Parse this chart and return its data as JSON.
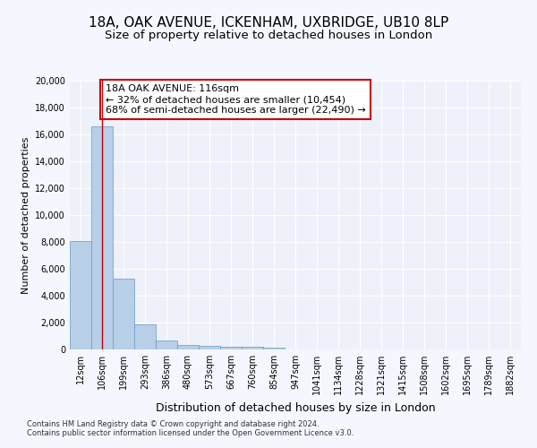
{
  "title1": "18A, OAK AVENUE, ICKENHAM, UXBRIDGE, UB10 8LP",
  "title2": "Size of property relative to detached houses in London",
  "xlabel": "Distribution of detached houses by size in London",
  "ylabel": "Number of detached properties",
  "categories": [
    "12sqm",
    "106sqm",
    "199sqm",
    "293sqm",
    "386sqm",
    "480sqm",
    "573sqm",
    "667sqm",
    "760sqm",
    "854sqm",
    "947sqm",
    "1041sqm",
    "1134sqm",
    "1228sqm",
    "1321sqm",
    "1415sqm",
    "1508sqm",
    "1602sqm",
    "1695sqm",
    "1789sqm",
    "1882sqm"
  ],
  "values": [
    8100,
    16600,
    5300,
    1850,
    680,
    360,
    270,
    200,
    175,
    155,
    0,
    0,
    0,
    0,
    0,
    0,
    0,
    0,
    0,
    0,
    0
  ],
  "bar_color": "#b8cfe8",
  "bar_edge_color": "#6699cc",
  "vline_x": 1.0,
  "vline_color": "#cc0000",
  "annotation_text": "18A OAK AVENUE: 116sqm\n← 32% of detached houses are smaller (10,454)\n68% of semi-detached houses are larger (22,490) →",
  "annotation_box_color": "#ffffff",
  "annotation_box_edge": "#cc0000",
  "ylim": [
    0,
    20000
  ],
  "yticks": [
    0,
    2000,
    4000,
    6000,
    8000,
    10000,
    12000,
    14000,
    16000,
    18000,
    20000
  ],
  "bg_color": "#f5f7ff",
  "plot_bg_color": "#eef1fa",
  "footer1": "Contains HM Land Registry data © Crown copyright and database right 2024.",
  "footer2": "Contains public sector information licensed under the Open Government Licence v3.0.",
  "grid_color": "#ffffff",
  "title1_fontsize": 11,
  "title2_fontsize": 9.5,
  "tick_fontsize": 7,
  "ylabel_fontsize": 8,
  "xlabel_fontsize": 9,
  "annotation_fontsize": 8,
  "footer_fontsize": 6
}
